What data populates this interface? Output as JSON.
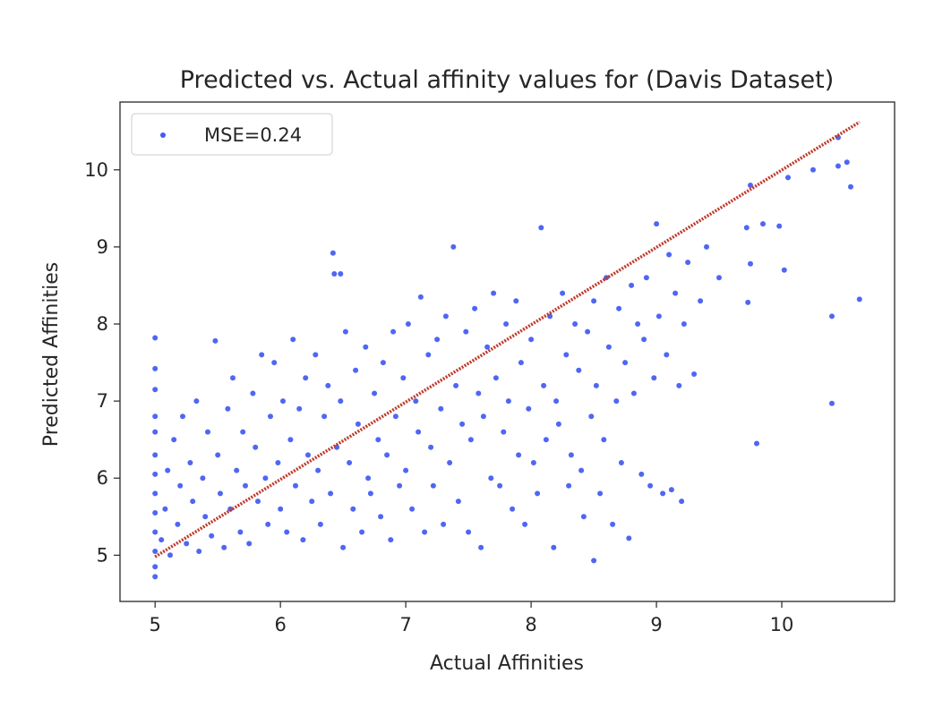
{
  "chart_data": {
    "type": "scatter",
    "title": "Predicted vs. Actual affinity values for (Davis Dataset)",
    "xlabel": "Actual Affinities",
    "ylabel": "Predicted Affinities",
    "xlim": [
      4.72,
      10.9
    ],
    "ylim": [
      4.4,
      10.88
    ],
    "xticks": [
      5,
      6,
      7,
      8,
      9,
      10
    ],
    "yticks": [
      5,
      6,
      7,
      8,
      9,
      10
    ],
    "grid": false,
    "legend_position": "top-left",
    "colors": {
      "points": "#1433f0",
      "fit": "#c0392b",
      "frame": "#262626"
    },
    "series": [
      {
        "name": "MSE=0.24",
        "color": "#1433f0",
        "points": [
          [
            5.0,
            4.72
          ],
          [
            5.0,
            4.85
          ],
          [
            5.0,
            5.05
          ],
          [
            5.0,
            5.3
          ],
          [
            5.0,
            5.55
          ],
          [
            5.0,
            5.8
          ],
          [
            5.0,
            6.05
          ],
          [
            5.0,
            6.3
          ],
          [
            5.0,
            6.6
          ],
          [
            5.0,
            6.8
          ],
          [
            5.0,
            7.15
          ],
          [
            5.0,
            7.42
          ],
          [
            5.0,
            7.82
          ],
          [
            5.05,
            5.2
          ],
          [
            5.08,
            5.6
          ],
          [
            5.1,
            6.1
          ],
          [
            5.12,
            5.0
          ],
          [
            5.15,
            6.5
          ],
          [
            5.18,
            5.4
          ],
          [
            5.2,
            5.9
          ],
          [
            5.22,
            6.8
          ],
          [
            5.25,
            5.15
          ],
          [
            5.28,
            6.2
          ],
          [
            5.3,
            5.7
          ],
          [
            5.33,
            7.0
          ],
          [
            5.35,
            5.05
          ],
          [
            5.38,
            6.0
          ],
          [
            5.4,
            5.5
          ],
          [
            5.42,
            6.6
          ],
          [
            5.45,
            5.25
          ],
          [
            5.48,
            7.78
          ],
          [
            5.5,
            6.3
          ],
          [
            5.52,
            5.8
          ],
          [
            5.55,
            5.1
          ],
          [
            5.58,
            6.9
          ],
          [
            5.6,
            5.6
          ],
          [
            5.62,
            7.3
          ],
          [
            5.65,
            6.1
          ],
          [
            5.68,
            5.3
          ],
          [
            5.7,
            6.6
          ],
          [
            5.72,
            5.9
          ],
          [
            5.75,
            5.15
          ],
          [
            5.78,
            7.1
          ],
          [
            5.8,
            6.4
          ],
          [
            5.82,
            5.7
          ],
          [
            5.85,
            7.6
          ],
          [
            5.88,
            6.0
          ],
          [
            5.9,
            5.4
          ],
          [
            5.92,
            6.8
          ],
          [
            5.95,
            7.5
          ],
          [
            5.98,
            6.2
          ],
          [
            6.0,
            5.6
          ],
          [
            6.02,
            7.0
          ],
          [
            6.05,
            5.3
          ],
          [
            6.08,
            6.5
          ],
          [
            6.1,
            7.8
          ],
          [
            6.12,
            5.9
          ],
          [
            6.15,
            6.9
          ],
          [
            6.18,
            5.2
          ],
          [
            6.2,
            7.3
          ],
          [
            6.22,
            6.3
          ],
          [
            6.25,
            5.7
          ],
          [
            6.28,
            7.6
          ],
          [
            6.3,
            6.1
          ],
          [
            6.32,
            5.4
          ],
          [
            6.35,
            6.8
          ],
          [
            6.38,
            7.2
          ],
          [
            6.4,
            5.8
          ],
          [
            6.42,
            8.92
          ],
          [
            6.43,
            8.65
          ],
          [
            6.48,
            8.65
          ],
          [
            6.45,
            6.4
          ],
          [
            6.48,
            7.0
          ],
          [
            6.5,
            5.1
          ],
          [
            6.52,
            7.9
          ],
          [
            6.55,
            6.2
          ],
          [
            6.58,
            5.6
          ],
          [
            6.6,
            7.4
          ],
          [
            6.62,
            6.7
          ],
          [
            6.65,
            5.3
          ],
          [
            6.68,
            7.7
          ],
          [
            6.7,
            6.0
          ],
          [
            6.72,
            5.8
          ],
          [
            6.75,
            7.1
          ],
          [
            6.78,
            6.5
          ],
          [
            6.8,
            5.5
          ],
          [
            6.82,
            7.5
          ],
          [
            6.85,
            6.3
          ],
          [
            6.88,
            5.2
          ],
          [
            6.9,
            7.9
          ],
          [
            6.92,
            6.8
          ],
          [
            6.95,
            5.9
          ],
          [
            6.98,
            7.3
          ],
          [
            7.0,
            6.1
          ],
          [
            7.02,
            8.0
          ],
          [
            7.05,
            5.6
          ],
          [
            7.08,
            7.0
          ],
          [
            7.1,
            6.6
          ],
          [
            7.12,
            8.35
          ],
          [
            7.15,
            5.3
          ],
          [
            7.18,
            7.6
          ],
          [
            7.2,
            6.4
          ],
          [
            7.22,
            5.9
          ],
          [
            7.25,
            7.8
          ],
          [
            7.28,
            6.9
          ],
          [
            7.3,
            5.4
          ],
          [
            7.32,
            8.1
          ],
          [
            7.35,
            6.2
          ],
          [
            7.38,
            9.0
          ],
          [
            7.4,
            7.2
          ],
          [
            7.42,
            5.7
          ],
          [
            7.45,
            6.7
          ],
          [
            7.48,
            7.9
          ],
          [
            7.5,
            5.3
          ],
          [
            7.52,
            6.5
          ],
          [
            7.55,
            8.2
          ],
          [
            7.58,
            7.1
          ],
          [
            7.6,
            5.1
          ],
          [
            7.62,
            6.8
          ],
          [
            7.65,
            7.7
          ],
          [
            7.68,
            6.0
          ],
          [
            7.7,
            8.4
          ],
          [
            7.72,
            7.3
          ],
          [
            7.75,
            5.9
          ],
          [
            7.78,
            6.6
          ],
          [
            7.8,
            8.0
          ],
          [
            7.82,
            7.0
          ],
          [
            7.85,
            5.6
          ],
          [
            7.88,
            8.3
          ],
          [
            7.9,
            6.3
          ],
          [
            7.92,
            7.5
          ],
          [
            7.95,
            5.4
          ],
          [
            7.98,
            6.9
          ],
          [
            8.0,
            7.8
          ],
          [
            8.02,
            6.2
          ],
          [
            8.05,
            5.8
          ],
          [
            8.08,
            9.25
          ],
          [
            8.1,
            7.2
          ],
          [
            8.12,
            6.5
          ],
          [
            8.15,
            8.1
          ],
          [
            8.18,
            5.1
          ],
          [
            8.2,
            7.0
          ],
          [
            8.22,
            6.7
          ],
          [
            8.25,
            8.4
          ],
          [
            8.28,
            7.6
          ],
          [
            8.3,
            5.9
          ],
          [
            8.32,
            6.3
          ],
          [
            8.35,
            8.0
          ],
          [
            8.38,
            7.4
          ],
          [
            8.4,
            6.1
          ],
          [
            8.42,
            5.5
          ],
          [
            8.45,
            7.9
          ],
          [
            8.48,
            6.8
          ],
          [
            8.5,
            8.3
          ],
          [
            8.5,
            4.93
          ],
          [
            8.52,
            7.2
          ],
          [
            8.55,
            5.8
          ],
          [
            8.58,
            6.5
          ],
          [
            8.6,
            8.6
          ],
          [
            8.62,
            7.7
          ],
          [
            8.65,
            5.4
          ],
          [
            8.68,
            7.0
          ],
          [
            8.7,
            8.2
          ],
          [
            8.72,
            6.2
          ],
          [
            8.75,
            7.5
          ],
          [
            8.78,
            5.22
          ],
          [
            8.8,
            8.5
          ],
          [
            8.82,
            7.1
          ],
          [
            8.85,
            8.0
          ],
          [
            8.88,
            6.05
          ],
          [
            8.9,
            7.8
          ],
          [
            8.92,
            8.6
          ],
          [
            8.95,
            5.9
          ],
          [
            8.98,
            7.3
          ],
          [
            9.0,
            9.3
          ],
          [
            9.02,
            8.1
          ],
          [
            9.05,
            5.8
          ],
          [
            9.08,
            7.6
          ],
          [
            9.1,
            8.9
          ],
          [
            9.12,
            5.85
          ],
          [
            9.15,
            8.4
          ],
          [
            9.18,
            7.2
          ],
          [
            9.2,
            5.7
          ],
          [
            9.22,
            8.0
          ],
          [
            9.25,
            8.8
          ],
          [
            9.3,
            7.35
          ],
          [
            9.35,
            8.3
          ],
          [
            9.4,
            9.0
          ],
          [
            9.5,
            8.6
          ],
          [
            9.72,
            9.25
          ],
          [
            9.73,
            8.28
          ],
          [
            9.75,
            8.78
          ],
          [
            9.75,
            9.8
          ],
          [
            9.8,
            6.45
          ],
          [
            9.85,
            9.3
          ],
          [
            9.98,
            9.27
          ],
          [
            10.02,
            8.7
          ],
          [
            10.05,
            9.9
          ],
          [
            10.25,
            10.0
          ],
          [
            10.4,
            8.1
          ],
          [
            10.4,
            6.97
          ],
          [
            10.45,
            10.42
          ],
          [
            10.45,
            10.05
          ],
          [
            10.52,
            10.1
          ],
          [
            10.55,
            9.78
          ],
          [
            10.62,
            8.32
          ]
        ]
      }
    ],
    "fit_line": {
      "from": [
        5.0,
        4.98
      ],
      "to": [
        10.62,
        10.62
      ]
    }
  }
}
